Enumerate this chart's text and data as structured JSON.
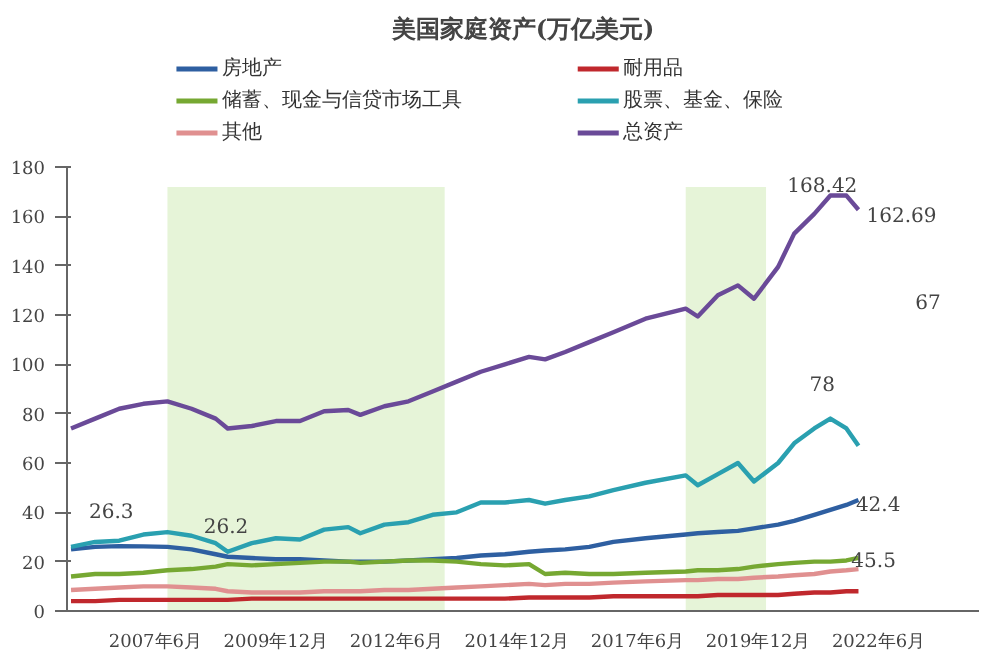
{
  "chart_data": {
    "type": "line",
    "title": "美国家庭资产(万亿美元)",
    "x": [
      "2005-09",
      "2006-03",
      "2006-09",
      "2007-03",
      "2007-09",
      "2008-03",
      "2008-09",
      "2008-12",
      "2009-06",
      "2009-12",
      "2010-06",
      "2010-12",
      "2011-06",
      "2011-09",
      "2012-03",
      "2012-09",
      "2013-03",
      "2013-09",
      "2014-03",
      "2014-09",
      "2015-03",
      "2015-07",
      "2015-12",
      "2016-06",
      "2016-12",
      "2017-08",
      "2018-06",
      "2018-09",
      "2019-02",
      "2019-07",
      "2019-11",
      "2020-05",
      "2020-09",
      "2021-02",
      "2021-06",
      "2021-10",
      "2022-01"
    ],
    "series": [
      {
        "name": "房地产",
        "color": "#2e5fa1",
        "values": [
          25,
          26,
          26.3,
          26.2,
          26,
          25,
          23,
          22,
          21.5,
          21,
          21,
          20.5,
          20,
          20,
          20,
          20.5,
          21,
          21.5,
          22.5,
          23,
          24,
          24.5,
          25,
          26,
          28,
          29.5,
          31,
          31.5,
          32,
          32.5,
          33.5,
          35,
          36.5,
          39,
          41,
          43,
          45
        ]
      },
      {
        "name": "耐用品",
        "color": "#c0282d",
        "values": [
          4,
          4,
          4.5,
          4.5,
          4.5,
          4.5,
          4.5,
          4.5,
          5,
          5,
          5,
          5,
          5,
          5,
          5,
          5,
          5,
          5,
          5,
          5,
          5.5,
          5.5,
          5.5,
          5.5,
          6,
          6,
          6,
          6,
          6.5,
          6.5,
          6.5,
          6.5,
          7,
          7.5,
          7.5,
          8,
          8
        ]
      },
      {
        "name": "储蓄、现金与信贷市场工具",
        "color": "#76a832",
        "values": [
          14,
          15,
          15,
          15.5,
          16.5,
          17,
          18,
          19,
          18.5,
          19,
          19.5,
          20,
          20,
          19.5,
          20,
          20.5,
          20.5,
          20,
          19,
          18.5,
          19,
          15,
          15.5,
          15,
          15,
          15.5,
          16,
          16.5,
          16.5,
          17,
          18,
          19,
          19.5,
          20,
          20,
          20.5,
          21.5
        ]
      },
      {
        "name": "股票、基金、保险",
        "color": "#2aa0b0",
        "values": [
          26,
          28,
          28.5,
          31,
          32,
          30.5,
          27.5,
          24,
          27.5,
          29.5,
          29,
          33,
          34,
          31.5,
          35,
          36,
          39,
          40,
          44,
          44,
          45,
          43.5,
          45,
          46.5,
          49,
          52,
          55,
          51,
          55.5,
          60,
          52.5,
          60,
          68,
          74,
          78,
          74,
          67
        ]
      },
      {
        "name": "其他",
        "color": "#e09090",
        "values": [
          8.5,
          9,
          9.5,
          10,
          10,
          9.5,
          9,
          8,
          7.5,
          7.5,
          7.5,
          8,
          8,
          8,
          8.5,
          8.5,
          9,
          9.5,
          10,
          10.5,
          11,
          10.5,
          11,
          11,
          11.5,
          12,
          12.5,
          12.5,
          13,
          13,
          13.5,
          14,
          14.5,
          15,
          16,
          16.5,
          17
        ]
      },
      {
        "name": "总资产",
        "color": "#6a4a98",
        "values": [
          74,
          78,
          82,
          84,
          85,
          82,
          78,
          74,
          75,
          77,
          77,
          81,
          81.5,
          79.5,
          83,
          85,
          89,
          93,
          97,
          100,
          103,
          102,
          105,
          109,
          113,
          118.5,
          122.6,
          119.4,
          128,
          132,
          126.6,
          139.5,
          153,
          161,
          168.42,
          168.42,
          162.69
        ]
      }
    ],
    "xlim": [
      "2005-08",
      "2024-07"
    ],
    "xticks": [
      {
        "value": "2007-06",
        "label": "2007年6月"
      },
      {
        "value": "2009-12",
        "label": "2009年12月"
      },
      {
        "value": "2012-06",
        "label": "2012年6月"
      },
      {
        "value": "2014-12",
        "label": "2014年12月"
      },
      {
        "value": "2017-06",
        "label": "2017年6月"
      },
      {
        "value": "2019-12",
        "label": "2019年12月"
      },
      {
        "value": "2022-06",
        "label": "2022年6月"
      }
    ],
    "ylim": [
      0,
      180
    ],
    "yticks": [
      0,
      20,
      40,
      60,
      80,
      100,
      120,
      140,
      160,
      180
    ],
    "bands": [
      {
        "axis": "x",
        "from": "2007-09",
        "to": "2013-06",
        "color": "#e6f4d8"
      },
      {
        "axis": "x",
        "from": "2018-06",
        "to": "2020-02",
        "color": "#e6f4d8"
      }
    ],
    "annotations": [
      {
        "text": "26.3",
        "x": "2006-09",
        "y": 26.3
      },
      "26.2",
      {
        "text": "168.42",
        "x": "2021-06",
        "y": 168.42
      },
      {
        "text": "162.69",
        "x": "2022-01",
        "y": 162.69
      },
      "67",
      {
        "text": "78",
        "x": "2021-06",
        "y": 78
      },
      "42.4",
      "45.5"
    ],
    "grid": false,
    "legend": "top",
    "marker": "none",
    "line_style": "solid"
  }
}
